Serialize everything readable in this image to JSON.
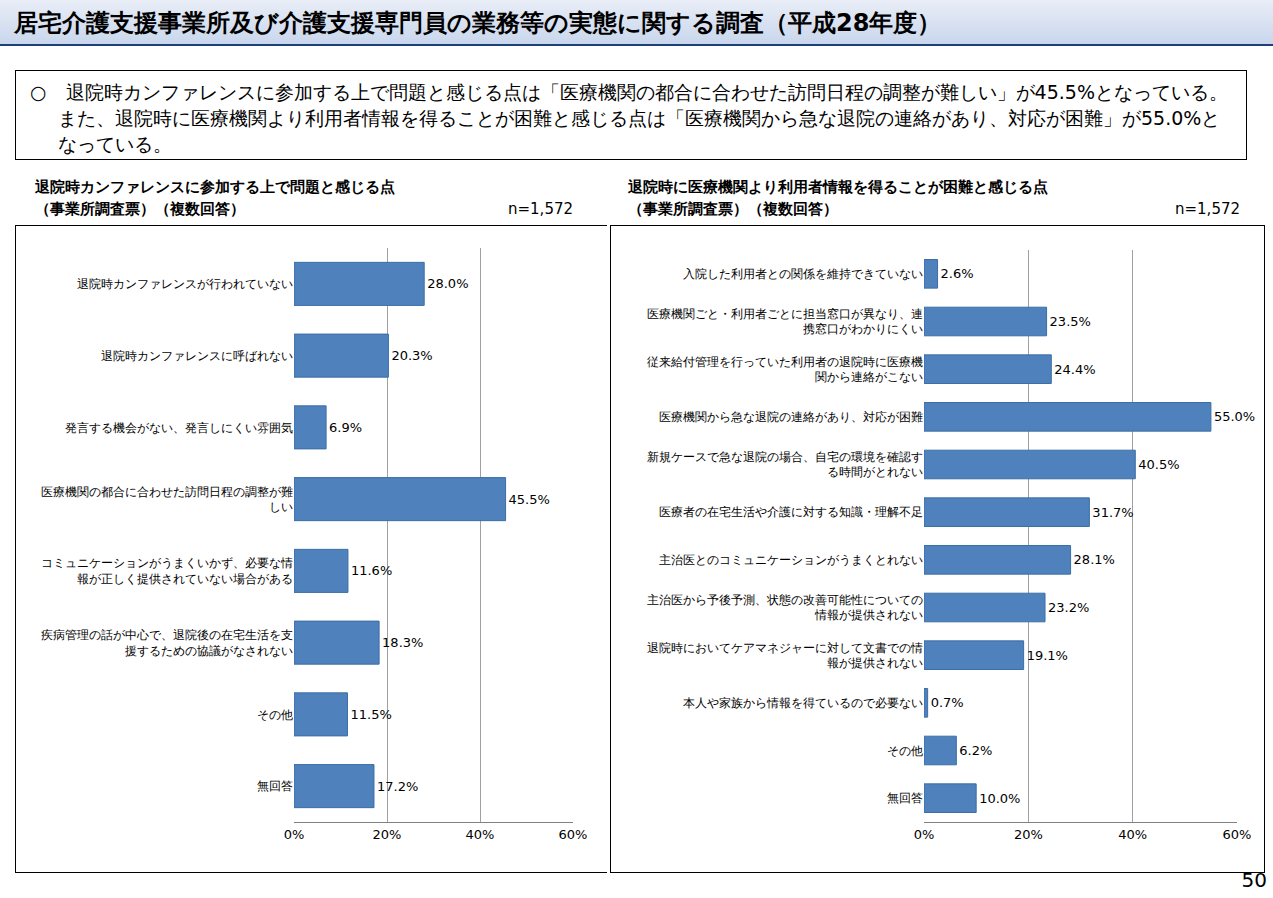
{
  "header": {
    "title": "居宅介護支援事業所及び介護支援専門員の業務等の実態に関する調査（平成28年度）"
  },
  "summary": "○　退院時カンファレンスに参加する上で問題と感じる点は「医療機関の都合に合わせた訪問日程の調整が難しい」が45.5%となっている。また、退院時に医療機関より利用者情報を得ることが困難と感じる点は「医療機関から急な退院の連絡があり、対応が困難」が55.0%となっている。",
  "page_number": "50",
  "chart_data": [
    {
      "type": "bar",
      "orientation": "horizontal",
      "title": "退院時カンファレンスに参加する上で問題と感じる点\n（事業所調査票）（複数回答）",
      "subtitle": "n=1,572",
      "categories": [
        "退院時カンファレンスが行われていない",
        "退院時カンファレンスに呼ばれない",
        "発言する機会がない、発言しにくい雰囲気",
        "医療機関の都合に合わせた訪問日程の調整が難しい",
        "コミュニケーションがうまくいかず、必要な情報が正しく提供されていない場合がある",
        "疾病管理の話が中心で、退院後の在宅生活を支援するための協議がなされない",
        "その他",
        "無回答"
      ],
      "values": [
        28.0,
        20.3,
        6.9,
        45.5,
        11.6,
        18.3,
        11.5,
        17.2
      ],
      "value_labels": [
        "28.0%",
        "20.3%",
        "6.9%",
        "45.5%",
        "11.6%",
        "18.3%",
        "11.5%",
        "17.2%"
      ],
      "color": "#4f81bd",
      "xlim": [
        0,
        60
      ],
      "xticks": [
        {
          "value": 0,
          "label": "0%"
        },
        {
          "value": 20,
          "label": "20%"
        },
        {
          "value": 40,
          "label": "40%"
        },
        {
          "value": 60,
          "label": "60%"
        }
      ],
      "grid": true,
      "data_labels": true
    },
    {
      "type": "bar",
      "orientation": "horizontal",
      "title": "退院時に医療機関より利用者情報を得ることが困難と感じる点\n（事業所調査票）（複数回答）",
      "subtitle": "n=1,572",
      "categories": [
        "入院した利用者との関係を維持できていない",
        "医療機関ごと・利用者ごとに担当窓口が異なり、連携窓口がわかりにくい",
        "従来給付管理を行っていた利用者の退院時に医療機関から連絡がこない",
        "医療機関から急な退院の連絡があり、対応が困難",
        "新規ケースで急な退院の場合、自宅の環境を確認する時間がとれない",
        "医療者の在宅生活や介護に対する知識・理解不足",
        "主治医とのコミュニケーションがうまくとれない",
        "主治医から予後予測、状態の改善可能性についての情報が提供されない",
        "退院時においてケアマネジャーに対して文書での情報が提供されない",
        "本人や家族から情報を得ているので必要ない",
        "その他",
        "無回答"
      ],
      "values": [
        2.6,
        23.5,
        24.4,
        55.0,
        40.5,
        31.7,
        28.1,
        23.2,
        19.1,
        0.7,
        6.2,
        10.0
      ],
      "value_labels": [
        "2.6%",
        "23.5%",
        "24.4%",
        "55.0%",
        "40.5%",
        "31.7%",
        "28.1%",
        "23.2%",
        "19.1%",
        "0.7%",
        "6.2%",
        "10.0%"
      ],
      "color": "#4f81bd",
      "xlim": [
        0,
        60
      ],
      "xticks": [
        {
          "value": 0,
          "label": "0%"
        },
        {
          "value": 20,
          "label": "20%"
        },
        {
          "value": 40,
          "label": "40%"
        },
        {
          "value": 60,
          "label": "60%"
        }
      ],
      "grid": true,
      "data_labels": true
    }
  ]
}
